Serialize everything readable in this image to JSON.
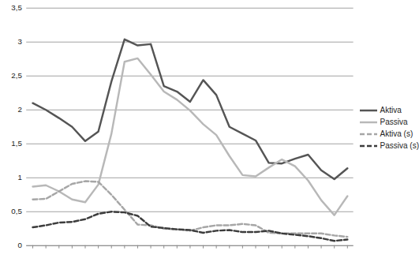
{
  "chart_data": {
    "type": "line",
    "categories": [
      null,
      null,
      null,
      null,
      null,
      null,
      null,
      null,
      null,
      null,
      null,
      null,
      null,
      null,
      null,
      null,
      null,
      null,
      null,
      null,
      null,
      null,
      null,
      null,
      null
    ],
    "series": [
      {
        "name": "Aktiva",
        "color": "#555555",
        "line_style": "solid",
        "values": [
          2.1,
          2.0,
          1.88,
          1.75,
          1.54,
          1.68,
          2.42,
          3.04,
          2.95,
          2.97,
          2.35,
          2.27,
          2.12,
          2.44,
          2.22,
          1.75,
          1.65,
          1.55,
          1.22,
          1.21,
          1.28,
          1.34,
          1.11,
          0.98,
          1.14
        ]
      },
      {
        "name": "Passiva",
        "color": "#b8b8b8",
        "line_style": "solid",
        "values": [
          0.87,
          0.89,
          0.8,
          0.68,
          0.64,
          0.9,
          1.65,
          2.71,
          2.76,
          2.52,
          2.27,
          2.15,
          1.99,
          1.79,
          1.63,
          1.32,
          1.04,
          1.02,
          1.15,
          1.27,
          1.17,
          0.96,
          0.67,
          0.45,
          0.73
        ]
      },
      {
        "name": "Aktiva (s)",
        "color": "#a6a6a6",
        "line_style": "dashed",
        "values": [
          0.68,
          0.69,
          0.8,
          0.91,
          0.95,
          0.94,
          0.75,
          0.53,
          0.31,
          0.3,
          0.25,
          0.24,
          0.22,
          0.27,
          0.3,
          0.3,
          0.32,
          0.3,
          0.19,
          0.18,
          0.18,
          0.18,
          0.18,
          0.15,
          0.13
        ]
      },
      {
        "name": "Passiva (s)",
        "color": "#3c3c3c",
        "line_style": "dashed",
        "values": [
          0.27,
          0.3,
          0.34,
          0.35,
          0.39,
          0.47,
          0.5,
          0.49,
          0.44,
          0.28,
          0.26,
          0.24,
          0.23,
          0.19,
          0.22,
          0.23,
          0.2,
          0.2,
          0.22,
          0.18,
          0.16,
          0.14,
          0.11,
          0.07,
          0.09
        ]
      }
    ],
    "ylim": [
      0,
      3.5
    ],
    "yticks": [
      0,
      {
        "value": 0.5,
        "label": "0,5"
      },
      1,
      {
        "value": 1.5,
        "label": "1,5"
      },
      2,
      {
        "value": 2.5,
        "label": "2,5"
      },
      3,
      {
        "value": 3.5,
        "label": "3,5"
      }
    ],
    "grid": true,
    "legend": "right",
    "tick_labels": "y"
  }
}
